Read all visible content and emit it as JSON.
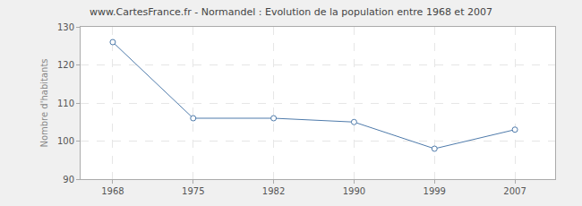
{
  "chart_data": {
    "type": "line",
    "title": "www.CartesFrance.fr - Normandel : Evolution de la population entre 1968 et 2007",
    "y_label": "Nombre d'habitants",
    "categories": [
      "1968",
      "1975",
      "1982",
      "1990",
      "1999",
      "2007"
    ],
    "values": [
      126,
      106,
      106,
      105,
      98,
      103
    ],
    "color": "#4f7bab",
    "marker": "circle-open",
    "ylim": [
      90,
      130
    ],
    "yticks": [
      90,
      100,
      110,
      120,
      130
    ],
    "grid": true
  }
}
